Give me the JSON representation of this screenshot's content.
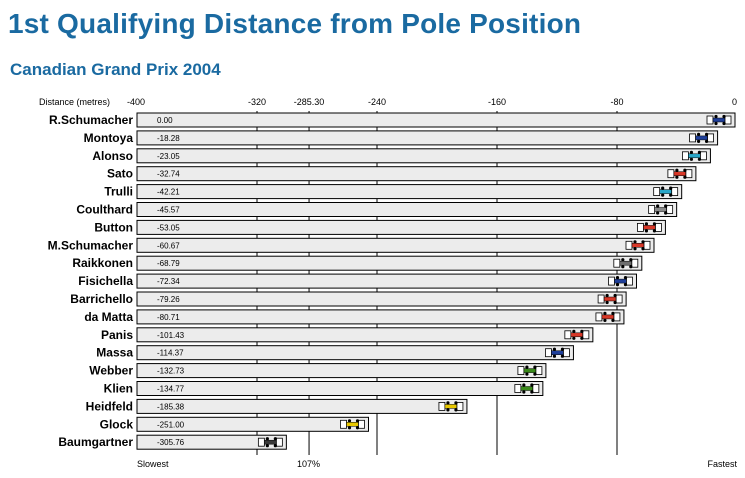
{
  "title": "1st Qualifying Distance from Pole Position",
  "subtitle": "Canadian Grand Prix 2004",
  "colors": {
    "title": "#1a6aa1",
    "bar_fill": "#ececec",
    "bar_stroke": "#000000",
    "grid": "#000000"
  },
  "chart_data": {
    "type": "bar",
    "orientation": "horizontal",
    "axis_label": "Distance (metres)",
    "xlim": [
      -400,
      0
    ],
    "ticks": [
      {
        "value": -400,
        "label": "-400"
      },
      {
        "value": -320,
        "label": "-320"
      },
      {
        "value": -285.3,
        "label": "-285.30"
      },
      {
        "value": -240,
        "label": "-240"
      },
      {
        "value": -160,
        "label": "-160"
      },
      {
        "value": -80,
        "label": "-80"
      },
      {
        "value": 0,
        "label": "0"
      }
    ],
    "bottom_labels": {
      "slowest": "Slowest",
      "107pct": "107%",
      "fastest": "Fastest"
    },
    "reference_line_107pct": -285.3,
    "gridlines": [
      -320,
      -285.3,
      -240,
      -160,
      -80
    ],
    "categories": [
      "R.Schumacher",
      "Montoya",
      "Alonso",
      "Sato",
      "Trulli",
      "Coulthard",
      "Button",
      "M.Schumacher",
      "Raikkonen",
      "Fisichella",
      "Barrichello",
      "da Matta",
      "Panis",
      "Massa",
      "Webber",
      "Klien",
      "Heidfeld",
      "Glock",
      "Baumgartner"
    ],
    "value_labels": [
      "0.00",
      "-18.28",
      "-23.05",
      "-32.74",
      "-42.21",
      "-45.57",
      "-53.05",
      "-60.67",
      "-68.79",
      "-72.34",
      "-79.26",
      "-80.71",
      "-101.43",
      "-114.37",
      "-132.73",
      "-134.77",
      "-185.38",
      "-251.00",
      "-305.76"
    ],
    "values": [
      0.0,
      -18.28,
      -23.05,
      -32.74,
      -42.21,
      -45.57,
      -53.05,
      -60.67,
      -68.79,
      -72.34,
      -79.26,
      -80.71,
      -101.43,
      -114.37,
      -132.73,
      -134.77,
      -185.38,
      -251.0,
      -305.76
    ],
    "car_colors": [
      "#1f3f9a",
      "#1f3f9a",
      "#2aa7c9",
      "#d83828",
      "#2aa7c9",
      "#8a8a8a",
      "#d83828",
      "#d83828",
      "#6f6f6f",
      "#1f3f9a",
      "#d83828",
      "#d83828",
      "#d83828",
      "#1f3f9a",
      "#3a8a1a",
      "#3a8a1a",
      "#e8c800",
      "#e8c800",
      "#3a3a3a"
    ],
    "legend": "none",
    "grid": true
  }
}
